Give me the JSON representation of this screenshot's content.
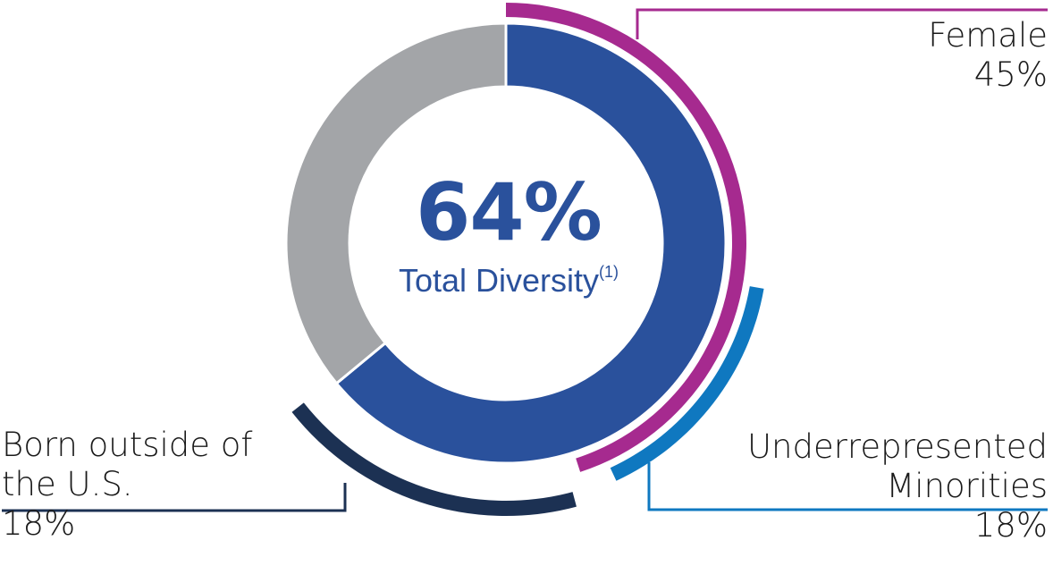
{
  "chart_data": {
    "type": "pie",
    "center": {
      "value": "64%",
      "label": "Total Diversity",
      "footnote": "(1)"
    },
    "slices": [
      {
        "value": 64,
        "color": "#2a519c"
      },
      {
        "value": 36,
        "color": "#a3a5a8"
      }
    ],
    "arcs": [
      {
        "name": "Female",
        "value": 45,
        "value_label": "45%",
        "color": "#a62a8f"
      },
      {
        "name": "Underrepresented Minorities",
        "value": 18,
        "value_label": "18%",
        "color": "#0f78c0"
      },
      {
        "name": "Born outside of the U.S.",
        "value": 18,
        "value_label": "18%",
        "color": "#1c3153"
      }
    ],
    "labels": {
      "female": {
        "line1": "Female",
        "value": "45%"
      },
      "urm": {
        "line1": "Underrepresented",
        "line2": "Minorities",
        "value": "18%"
      },
      "born": {
        "line1": "Born outside of",
        "line2": "the U.S.",
        "value": "18%"
      }
    },
    "colors": {
      "center_text": "#2a519c"
    }
  }
}
